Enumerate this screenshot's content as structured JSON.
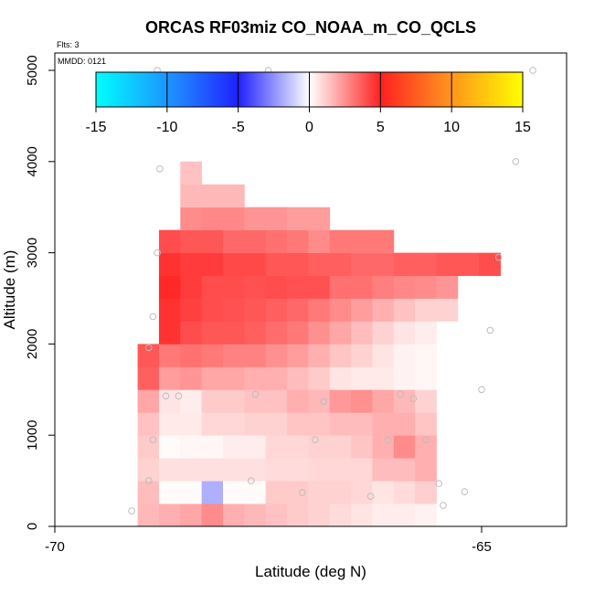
{
  "chart_data": {
    "type": "heatmap",
    "title": "ORCAS RF03miz CO_NOAA_m_CO_QCLS",
    "flights_note": "Flts: 3",
    "date_note": "MMDD: 0121",
    "xlabel": "Latitude (deg N)",
    "ylabel": "Altitude (m)",
    "xlim": [
      -70,
      -64
    ],
    "ylim": [
      0,
      5200
    ],
    "x_ticks": [
      -70,
      -65
    ],
    "x_tick_labels": [
      "-70",
      "-65"
    ],
    "y_ticks": [
      0,
      1000,
      2000,
      3000,
      4000,
      5000
    ],
    "y_tick_labels": [
      "0",
      "1000",
      "2000",
      "3000",
      "4000",
      "5000"
    ],
    "colorbar": {
      "range": [
        -15,
        15
      ],
      "ticks": [
        -15,
        -10,
        -5,
        0,
        5,
        10,
        15
      ],
      "tick_labels": [
        "-15",
        "-10",
        "-5",
        "0",
        "5",
        "10",
        "15"
      ]
    },
    "cell_height_m": 250,
    "cells": [
      [
        -69.03,
        -68.78,
        0,
        250,
        1.6
      ],
      [
        -68.78,
        -68.53,
        0,
        250,
        1.8
      ],
      [
        -68.53,
        -68.28,
        0,
        250,
        2.0
      ],
      [
        -68.28,
        -68.03,
        0,
        250,
        2.6
      ],
      [
        -68.03,
        -67.78,
        0,
        250,
        1.8
      ],
      [
        -67.78,
        -67.53,
        0,
        250,
        1.6
      ],
      [
        -67.53,
        -67.28,
        0,
        250,
        1.4
      ],
      [
        -67.28,
        -67.03,
        0,
        250,
        1.2
      ],
      [
        -67.03,
        -66.78,
        0,
        250,
        1.0
      ],
      [
        -66.78,
        -66.53,
        0,
        250,
        0.8
      ],
      [
        -66.53,
        -66.28,
        0,
        250,
        0.6
      ],
      [
        -66.28,
        -66.03,
        0,
        250,
        0.4
      ],
      [
        -66.03,
        -65.78,
        0,
        250,
        0.4
      ],
      [
        -65.78,
        -65.53,
        0,
        250,
        0.3
      ],
      [
        -69.03,
        -68.78,
        250,
        500,
        1.5
      ],
      [
        -68.78,
        -68.28,
        250,
        500,
        0.1
      ],
      [
        -68.28,
        -68.03,
        250,
        500,
        -1.8
      ],
      [
        -68.03,
        -67.53,
        250,
        500,
        0.1
      ],
      [
        -67.53,
        -67.03,
        250,
        500,
        1.2
      ],
      [
        -67.03,
        -66.53,
        250,
        500,
        1.0
      ],
      [
        -66.53,
        -66.28,
        250,
        500,
        0.9
      ],
      [
        -66.28,
        -66.03,
        250,
        500,
        0.6
      ],
      [
        -66.03,
        -65.78,
        250,
        500,
        0.8
      ],
      [
        -65.78,
        -65.53,
        250,
        500,
        1.1
      ],
      [
        -69.03,
        -68.78,
        500,
        750,
        1.0
      ],
      [
        -68.78,
        -67.53,
        500,
        750,
        0.7
      ],
      [
        -67.53,
        -67.03,
        500,
        750,
        0.8
      ],
      [
        -67.03,
        -66.28,
        500,
        750,
        0.9
      ],
      [
        -66.28,
        -65.78,
        500,
        750,
        1.5
      ],
      [
        -65.78,
        -65.53,
        500,
        750,
        1.8
      ],
      [
        -69.03,
        -68.78,
        750,
        1000,
        1.2
      ],
      [
        -68.78,
        -68.53,
        750,
        1000,
        0.1
      ],
      [
        -68.53,
        -68.03,
        750,
        1000,
        0.2
      ],
      [
        -68.03,
        -67.53,
        750,
        1000,
        0.4
      ],
      [
        -67.53,
        -67.03,
        750,
        1000,
        0.9
      ],
      [
        -67.03,
        -66.53,
        750,
        1000,
        1.0
      ],
      [
        -66.53,
        -66.28,
        750,
        1000,
        1.3
      ],
      [
        -66.28,
        -66.03,
        750,
        1000,
        1.8
      ],
      [
        -66.03,
        -65.78,
        750,
        1000,
        2.6
      ],
      [
        -65.78,
        -65.53,
        750,
        1000,
        1.8
      ],
      [
        -69.03,
        -68.78,
        1000,
        1250,
        1.4
      ],
      [
        -68.78,
        -68.28,
        1000,
        1250,
        0.5
      ],
      [
        -68.28,
        -67.78,
        1000,
        1250,
        0.9
      ],
      [
        -67.78,
        -67.28,
        1000,
        1250,
        1.0
      ],
      [
        -67.28,
        -66.78,
        1000,
        1250,
        1.3
      ],
      [
        -66.78,
        -66.28,
        1000,
        1250,
        1.5
      ],
      [
        -66.28,
        -65.78,
        1000,
        1250,
        1.8
      ],
      [
        -65.78,
        -65.53,
        1000,
        1250,
        1.3
      ],
      [
        -69.03,
        -68.78,
        1250,
        1500,
        2.0
      ],
      [
        -68.78,
        -68.53,
        1250,
        1500,
        0.6
      ],
      [
        -68.53,
        -68.28,
        1250,
        1500,
        0.4
      ],
      [
        -68.28,
        -67.78,
        1250,
        1500,
        1.2
      ],
      [
        -67.78,
        -67.28,
        1250,
        1500,
        1.4
      ],
      [
        -67.28,
        -67.03,
        1250,
        1500,
        1.8
      ],
      [
        -67.03,
        -66.78,
        1250,
        1500,
        1.6
      ],
      [
        -66.78,
        -66.53,
        1250,
        1500,
        2.3
      ],
      [
        -66.53,
        -66.28,
        1250,
        1500,
        2.5
      ],
      [
        -66.28,
        -66.03,
        1250,
        1500,
        2.0
      ],
      [
        -66.03,
        -65.78,
        1250,
        1500,
        1.6
      ],
      [
        -65.78,
        -65.53,
        1250,
        1500,
        1.0
      ],
      [
        -69.03,
        -68.78,
        1500,
        1750,
        3.6
      ],
      [
        -68.78,
        -68.53,
        1500,
        1750,
        2.2
      ],
      [
        -68.53,
        -68.28,
        1500,
        1750,
        2.4
      ],
      [
        -68.28,
        -67.78,
        1500,
        1750,
        2.0
      ],
      [
        -67.78,
        -67.28,
        1500,
        1750,
        1.8
      ],
      [
        -67.28,
        -67.03,
        1500,
        1750,
        1.5
      ],
      [
        -67.03,
        -66.78,
        1500,
        1750,
        1.2
      ],
      [
        -66.78,
        -66.53,
        1500,
        1750,
        0.6
      ],
      [
        -66.53,
        -66.03,
        1500,
        1750,
        0.5
      ],
      [
        -66.03,
        -65.78,
        1500,
        1750,
        0.3
      ],
      [
        -65.78,
        -65.53,
        1500,
        1750,
        0.2
      ],
      [
        -69.03,
        -68.78,
        1750,
        2000,
        3.8
      ],
      [
        -68.78,
        -68.53,
        1750,
        2000,
        3.0
      ],
      [
        -68.53,
        -68.28,
        1750,
        2000,
        3.2
      ],
      [
        -68.28,
        -68.03,
        1750,
        2000,
        3.0
      ],
      [
        -68.03,
        -67.78,
        1750,
        2000,
        2.8
      ],
      [
        -67.78,
        -67.53,
        1750,
        2000,
        2.8
      ],
      [
        -67.53,
        -67.28,
        1750,
        2000,
        2.5
      ],
      [
        -67.28,
        -67.03,
        1750,
        2000,
        2.2
      ],
      [
        -67.03,
        -66.78,
        1750,
        2000,
        1.8
      ],
      [
        -66.78,
        -66.53,
        1750,
        2000,
        1.3
      ],
      [
        -66.53,
        -66.28,
        1750,
        2000,
        1.0
      ],
      [
        -66.28,
        -66.03,
        1750,
        2000,
        0.6
      ],
      [
        -66.03,
        -65.78,
        1750,
        2000,
        0.3
      ],
      [
        -65.78,
        -65.53,
        1750,
        2000,
        0.2
      ],
      [
        -68.78,
        -68.53,
        2000,
        2250,
        4.6
      ],
      [
        -68.53,
        -68.28,
        2000,
        2250,
        4.0
      ],
      [
        -68.28,
        -68.03,
        2000,
        2250,
        3.8
      ],
      [
        -68.03,
        -67.78,
        2000,
        2250,
        3.8
      ],
      [
        -67.78,
        -67.53,
        2000,
        2250,
        3.6
      ],
      [
        -67.53,
        -67.28,
        2000,
        2250,
        3.3
      ],
      [
        -67.28,
        -67.03,
        2000,
        2250,
        3.0
      ],
      [
        -67.03,
        -66.78,
        2000,
        2250,
        2.5
      ],
      [
        -66.78,
        -66.53,
        2000,
        2250,
        2.0
      ],
      [
        -66.53,
        -66.28,
        2000,
        2250,
        1.5
      ],
      [
        -66.28,
        -66.03,
        2000,
        2250,
        1.0
      ],
      [
        -66.03,
        -65.78,
        2000,
        2250,
        0.6
      ],
      [
        -65.78,
        -65.53,
        2000,
        2250,
        0.4
      ],
      [
        -68.78,
        -68.53,
        2250,
        2500,
        4.6
      ],
      [
        -68.53,
        -68.28,
        2250,
        2500,
        4.3
      ],
      [
        -68.28,
        -68.03,
        2250,
        2500,
        4.0
      ],
      [
        -68.03,
        -67.78,
        2250,
        2500,
        3.9
      ],
      [
        -67.78,
        -67.53,
        2250,
        2500,
        3.8
      ],
      [
        -67.53,
        -67.28,
        2250,
        2500,
        3.6
      ],
      [
        -67.28,
        -67.03,
        2250,
        2500,
        3.4
      ],
      [
        -67.03,
        -66.78,
        2250,
        2500,
        3.0
      ],
      [
        -66.78,
        -66.53,
        2250,
        2500,
        2.6
      ],
      [
        -66.53,
        -66.28,
        2250,
        2500,
        2.2
      ],
      [
        -66.28,
        -66.03,
        2250,
        2500,
        1.8
      ],
      [
        -66.03,
        -65.78,
        2250,
        2500,
        1.4
      ],
      [
        -65.78,
        -65.28,
        2250,
        2500,
        1.0
      ],
      [
        -68.78,
        -68.53,
        2500,
        2750,
        4.8
      ],
      [
        -68.53,
        -68.28,
        2500,
        2750,
        4.4
      ],
      [
        -68.28,
        -67.78,
        2500,
        2750,
        4.0
      ],
      [
        -67.78,
        -67.53,
        2500,
        2750,
        3.9
      ],
      [
        -67.53,
        -67.28,
        2500,
        2750,
        4.0
      ],
      [
        -67.28,
        -66.78,
        2500,
        2750,
        3.9
      ],
      [
        -66.78,
        -66.28,
        2500,
        2750,
        3.2
      ],
      [
        -66.28,
        -66.03,
        2500,
        2750,
        2.9
      ],
      [
        -66.03,
        -65.78,
        2500,
        2750,
        2.7
      ],
      [
        -65.78,
        -65.53,
        2500,
        2750,
        2.6
      ],
      [
        -65.53,
        -65.28,
        2500,
        2750,
        2.4
      ],
      [
        -68.78,
        -68.53,
        2750,
        3000,
        4.6
      ],
      [
        -68.53,
        -68.03,
        2750,
        3000,
        4.4
      ],
      [
        -68.03,
        -67.53,
        2750,
        3000,
        4.1
      ],
      [
        -67.53,
        -67.03,
        2750,
        3000,
        3.8
      ],
      [
        -67.03,
        -66.53,
        2750,
        3000,
        3.6
      ],
      [
        -66.53,
        -66.03,
        2750,
        3000,
        3.4
      ],
      [
        -66.03,
        -65.53,
        2750,
        3000,
        3.6
      ],
      [
        -65.53,
        -65.03,
        2750,
        3000,
        3.8
      ],
      [
        -65.03,
        -64.78,
        2750,
        3000,
        4.0
      ],
      [
        -68.78,
        -68.53,
        3000,
        3250,
        4.0
      ],
      [
        -68.53,
        -68.03,
        3000,
        3250,
        3.8
      ],
      [
        -68.03,
        -67.53,
        3000,
        3250,
        3.4
      ],
      [
        -67.53,
        -67.28,
        3000,
        3250,
        3.2
      ],
      [
        -67.28,
        -67.03,
        3000,
        3250,
        3.0
      ],
      [
        -67.03,
        -66.78,
        3000,
        3250,
        2.6
      ],
      [
        -66.78,
        -66.03,
        3000,
        3250,
        3.0
      ],
      [
        -68.53,
        -68.28,
        3250,
        3500,
        2.6
      ],
      [
        -68.28,
        -67.78,
        3250,
        3500,
        2.7
      ],
      [
        -67.78,
        -67.28,
        3250,
        3500,
        2.4
      ],
      [
        -67.28,
        -66.78,
        3250,
        3500,
        2.2
      ],
      [
        -68.53,
        -67.78,
        3500,
        3750,
        1.6
      ],
      [
        -68.53,
        -68.28,
        3750,
        4000,
        1.4
      ]
    ],
    "sample_points": [
      [
        -69.1,
        170
      ],
      [
        -68.9,
        500
      ],
      [
        -68.85,
        950
      ],
      [
        -68.7,
        1430
      ],
      [
        -68.55,
        1430
      ],
      [
        -68.9,
        1960
      ],
      [
        -68.85,
        2300
      ],
      [
        -68.8,
        3000
      ],
      [
        -68.77,
        3920
      ],
      [
        -67.7,
        500
      ],
      [
        -67.65,
        1450
      ],
      [
        -67.1,
        370
      ],
      [
        -66.95,
        950
      ],
      [
        -66.85,
        1370
      ],
      [
        -66.3,
        330
      ],
      [
        -66.1,
        950
      ],
      [
        -65.95,
        1450
      ],
      [
        -65.8,
        1400
      ],
      [
        -65.65,
        950
      ],
      [
        -65.5,
        470
      ],
      [
        -65.45,
        230
      ],
      [
        -65.2,
        380
      ],
      [
        -65.0,
        1500
      ],
      [
        -64.9,
        2150
      ],
      [
        -64.8,
        2950
      ],
      [
        -64.6,
        4000
      ],
      [
        -64.4,
        5000
      ],
      [
        -68.8,
        5000
      ],
      [
        -67.5,
        5000
      ]
    ]
  }
}
